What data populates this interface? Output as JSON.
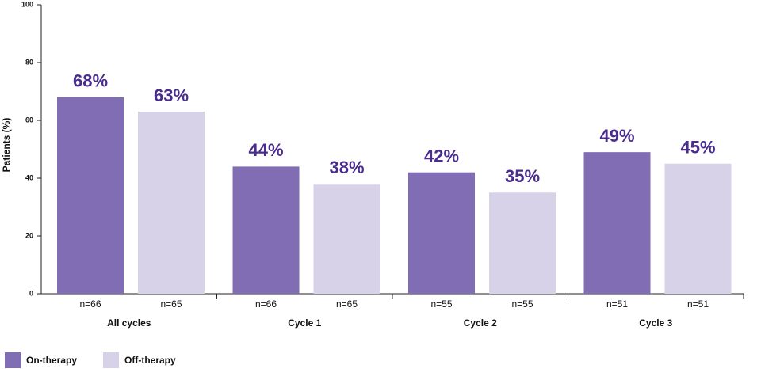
{
  "chart_data": {
    "type": "bar",
    "y_label": "Patients (%)",
    "categories": [
      "All cycles",
      "Cycle 1",
      "Cycle 2",
      "Cycle 3"
    ],
    "series": [
      {
        "name": "On-therapy",
        "color": "#806db4",
        "values": [
          68,
          44,
          42,
          49
        ],
        "value_labels": [
          "68%",
          "44%",
          "42%",
          "49%"
        ],
        "sample_labels": [
          "n=66",
          "n=66",
          "n=55",
          "n=51"
        ]
      },
      {
        "name": "Off-therapy",
        "color": "#d7d2e8",
        "values": [
          63,
          38,
          35,
          45
        ],
        "value_labels": [
          "63%",
          "38%",
          "35%",
          "45%"
        ],
        "sample_labels": [
          "n=65",
          "n=65",
          "n=55",
          "n=51"
        ]
      }
    ],
    "ylim": [
      0,
      100
    ],
    "yticks": [
      0,
      20,
      40,
      60,
      80,
      100
    ],
    "value_label_color": "#4a2c8f"
  }
}
